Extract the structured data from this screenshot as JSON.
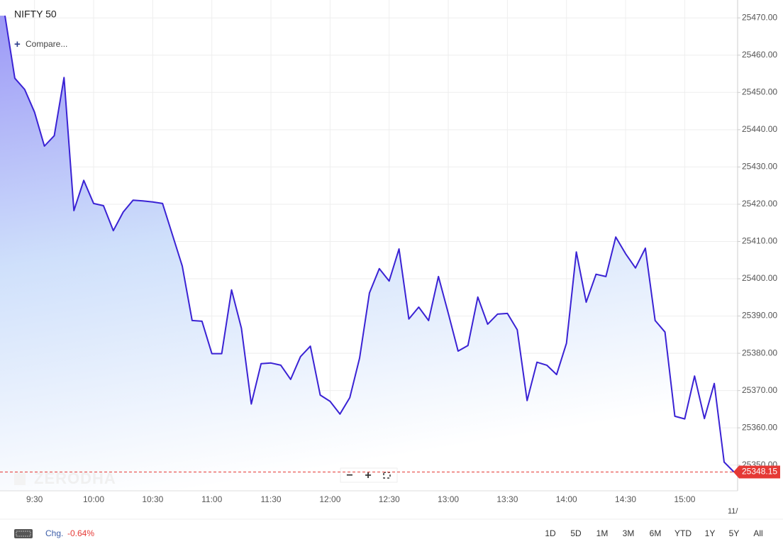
{
  "chart_data": {
    "type": "line",
    "title": "NIFTY 50",
    "compare": "Compare...",
    "watermark": "ZERODHA",
    "categories": [
      null,
      null,
      null,
      "9:30",
      null,
      null,
      null,
      null,
      null,
      "10:00",
      null,
      null,
      null,
      null,
      null,
      "10:30",
      null,
      null,
      null,
      null,
      null,
      "11:00",
      null,
      null,
      null,
      null,
      null,
      "11:30",
      null,
      null,
      null,
      null,
      null,
      "12:00",
      null,
      null,
      null,
      null,
      null,
      "12:30",
      null,
      null,
      null,
      null,
      null,
      "13:00",
      null,
      null,
      null,
      null,
      null,
      "13:30",
      null,
      null,
      null,
      null,
      null,
      "14:00",
      null,
      null,
      null,
      null,
      null,
      "14:30",
      null,
      null,
      null,
      null,
      null,
      "15:00",
      null,
      null,
      null,
      null,
      null
    ],
    "series": [
      {
        "name": "NIFTY 50",
        "color": "#3a22d4",
        "values": [
          25470.6,
          25453.8,
          25450.8,
          25444.7,
          25435.6,
          25438.4,
          25454.0,
          25418.3,
          25426.4,
          25420.2,
          25419.6,
          25412.9,
          25417.9,
          25421.1,
          25420.9,
          25420.6,
          25420.2,
          25411.8,
          25403.4,
          25388.8,
          25388.6,
          25379.9,
          25379.9,
          25397.0,
          25386.7,
          25366.4,
          25377.2,
          25377.4,
          25376.8,
          25373.0,
          25379.1,
          25381.9,
          25368.8,
          25367.1,
          25363.7,
          25368.1,
          25378.7,
          25396.2,
          25402.7,
          25399.4,
          25408.0,
          25389.2,
          25392.4,
          25388.8,
          25400.6,
          25390.7,
          25380.6,
          25382.1,
          25395.1,
          25387.8,
          25390.5,
          25390.7,
          25386.3,
          25367.3,
          25377.6,
          25376.8,
          25374.3,
          25382.7,
          25407.2,
          25393.7,
          25401.2,
          25400.6,
          25411.2,
          25406.7,
          25402.9,
          25408.2,
          25388.8,
          25385.7,
          25363.1,
          25362.4,
          25373.9,
          25362.5,
          25371.9,
          25350.8,
          25348.15
        ]
      }
    ],
    "last_price": 25348.15,
    "edge_label": "11/",
    "ylim": [
      25343.1,
      25474.8
    ],
    "yticks": [
      {
        "value": 25350,
        "label": "25350.00"
      },
      {
        "value": 25360,
        "label": "25360.00"
      },
      {
        "value": 25370,
        "label": "25370.00"
      },
      {
        "value": 25380,
        "label": "25380.00"
      },
      {
        "value": 25390,
        "label": "25390.00"
      },
      {
        "value": 25400,
        "label": "25400.00"
      },
      {
        "value": 25410,
        "label": "25410.00"
      },
      {
        "value": 25420,
        "label": "25420.00"
      },
      {
        "value": 25430,
        "label": "25430.00"
      },
      {
        "value": 25440,
        "label": "25440.00"
      },
      {
        "value": 25450,
        "label": "25450.00"
      },
      {
        "value": 25460,
        "label": "25460.00"
      },
      {
        "value": 25470,
        "label": "25470.00"
      }
    ],
    "grid": true
  },
  "toolbar": {
    "change_label": "Chg.",
    "change": "-0.64%",
    "ranges": [
      "1D",
      "5D",
      "1M",
      "3M",
      "6M",
      "YTD",
      "1Y",
      "5Y",
      "All"
    ]
  }
}
